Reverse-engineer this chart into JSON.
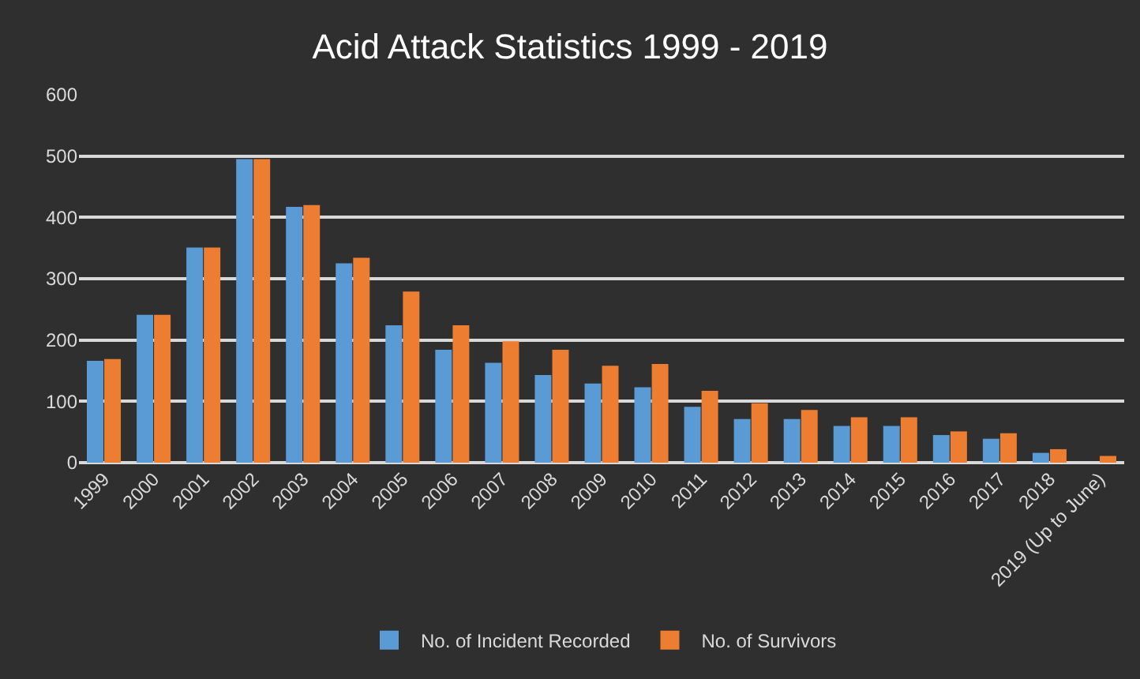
{
  "chart_data": {
    "type": "bar",
    "title": "Acid Attack Statistics 1999 - 2019",
    "categories": [
      "1999",
      "2000",
      "2001",
      "2002",
      "2003",
      "2004",
      "2005",
      "2006",
      "2007",
      "2008",
      "2009",
      "2010",
      "2011",
      "2012",
      "2013",
      "2014",
      "2015",
      "2016",
      "2017",
      "2018",
      "2019 (Up to June)"
    ],
    "series": [
      {
        "name": "No. of Incident Recorded",
        "color": "#5b9bd5",
        "values": [
          166,
          241,
          351,
          495,
          417,
          325,
          224,
          184,
          163,
          143,
          129,
          123,
          91,
          71,
          71,
          60,
          60,
          45,
          39,
          16,
          null
        ]
      },
      {
        "name": "No. of Survivors",
        "color": "#ed7d31",
        "values": [
          169,
          241,
          351,
          495,
          420,
          334,
          279,
          224,
          198,
          184,
          158,
          161,
          117,
          97,
          86,
          74,
          74,
          51,
          48,
          22,
          11
        ]
      }
    ],
    "ylim": [
      0,
      600
    ],
    "yticks": [
      0,
      100,
      200,
      300,
      400,
      500,
      600
    ],
    "grid": "y",
    "legend": "bottom"
  }
}
